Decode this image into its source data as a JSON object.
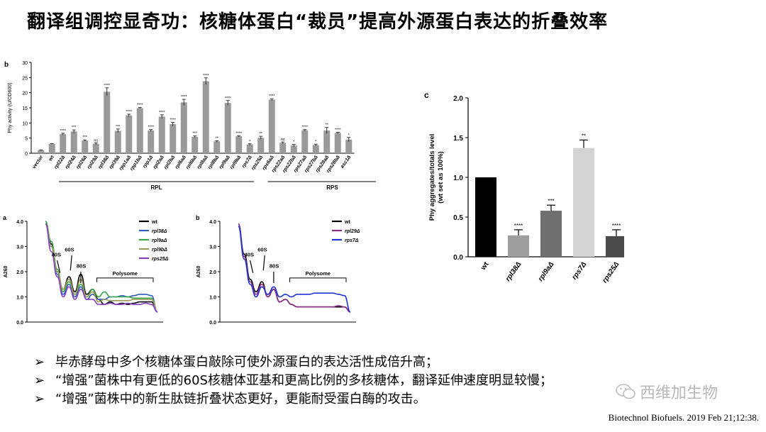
{
  "title": "翻译组调控显奇功：核糖体蛋白“裁员”提高外源蛋白表达的折叠效率",
  "panels": {
    "bar_b": {
      "label": "b",
      "ylabel": "Phy activity (U/OD600)",
      "ymax": 30,
      "yticks": [
        0,
        5,
        10,
        15,
        20,
        25,
        30
      ],
      "groups": [
        {
          "name": "RPL",
          "from": 2,
          "to": 19
        },
        {
          "name": "RPS",
          "from": 21,
          "to": 32
        }
      ],
      "bars": [
        {
          "label": "vector",
          "value": 1.0,
          "err": 0.1,
          "sig": ""
        },
        {
          "label": "wt",
          "value": 3.1,
          "err": 0.1,
          "sig": ""
        },
        {
          "label": "rpl22Δ",
          "value": 6.3,
          "err": 0.3,
          "sig": "****"
        },
        {
          "label": "rpl24Δ",
          "value": 7.2,
          "err": 0.5,
          "sig": "***"
        },
        {
          "label": "rpl26Δ",
          "value": 4.2,
          "err": 0.2,
          "sig": "***"
        },
        {
          "label": "rpl29Δ",
          "value": 3.1,
          "err": 0.3,
          "sig": "ns"
        },
        {
          "label": "rpl38Δ",
          "value": 20.3,
          "err": 1.3,
          "sig": "****"
        },
        {
          "label": "rpl39Δ",
          "value": 7.4,
          "err": 0.6,
          "sig": "***"
        },
        {
          "label": "rpp1aΔ",
          "value": 12.5,
          "err": 0.4,
          "sig": "****"
        },
        {
          "label": "rpp1bΔ",
          "value": 14.9,
          "err": 0.2,
          "sig": "****"
        },
        {
          "label": "rpp1Δ",
          "value": 7.5,
          "err": 0.3,
          "sig": "****"
        },
        {
          "label": "rpl2aΔ",
          "value": 12.1,
          "err": 0.6,
          "sig": "****"
        },
        {
          "label": "rpl2bΔ",
          "value": 9.6,
          "err": 0.6,
          "sig": "****"
        },
        {
          "label": "rpl6aΔ",
          "value": 16.8,
          "err": 1.0,
          "sig": "****"
        },
        {
          "label": "rpl6bΔ",
          "value": 5.4,
          "err": 0.3,
          "sig": "***"
        },
        {
          "label": "rpl8aΔ",
          "value": 23.8,
          "err": 1.1,
          "sig": "****"
        },
        {
          "label": "rpl8bΔ",
          "value": 3.9,
          "err": 0.2,
          "sig": "**"
        },
        {
          "label": "rpl9aΔ",
          "value": 16.6,
          "err": 0.8,
          "sig": "****"
        },
        {
          "label": "rpl9bΔ",
          "value": 5.6,
          "err": 0.2,
          "sig": "****"
        },
        {
          "label": "rps7Δ",
          "value": 2.9,
          "err": 0.2,
          "sig": "*"
        },
        {
          "label": "rps25Δ",
          "value": 5.1,
          "err": 0.5,
          "sig": "**"
        },
        {
          "label": "rps6aΔ",
          "value": 17.7,
          "err": 0.3,
          "sig": "****"
        },
        {
          "label": "rps22aΔ",
          "value": 3.4,
          "err": 0.3,
          "sig": "ns"
        },
        {
          "label": "rps22bΔ",
          "value": 2.5,
          "err": 0.4,
          "sig": "*"
        },
        {
          "label": "rps27aΔ",
          "value": 7.6,
          "err": 0.2,
          "sig": "****"
        },
        {
          "label": "rps27bΔ",
          "value": 2.7,
          "err": 0.3,
          "sig": "*"
        },
        {
          "label": "rps28aΔ",
          "value": 7.5,
          "err": 1.0,
          "sig": "**"
        },
        {
          "label": "rps28bΔ",
          "value": 6.7,
          "err": 0.2,
          "sig": "****"
        },
        {
          "label": "asc1Δ",
          "value": 4.5,
          "err": 0.7,
          "sig": "*"
        }
      ]
    },
    "bar_c": {
      "label": "c",
      "ylabel_line1": "Phy aggregates/totals level",
      "ylabel_line2": "(wt set as 100%)",
      "ymax": 2.0,
      "yticks": [
        "0.0",
        "0.5",
        "1.0",
        "1.5",
        "2.0"
      ],
      "bars": [
        {
          "label": "wt",
          "value": 1.0,
          "err": 0.0,
          "sig": "",
          "color": "#000000"
        },
        {
          "label": "rpl38Δ",
          "value": 0.27,
          "err": 0.07,
          "sig": "****",
          "color": "#9e9e9e"
        },
        {
          "label": "rpl9aΔ",
          "value": 0.58,
          "err": 0.07,
          "sig": "***",
          "color": "#6f6f6f"
        },
        {
          "label": "rps7Δ",
          "value": 1.37,
          "err": 0.1,
          "sig": "**",
          "color": "#d4d4d4"
        },
        {
          "label": "rps25Δ",
          "value": 0.26,
          "err": 0.08,
          "sig": "****",
          "color": "#4a4a4a"
        }
      ]
    },
    "poly_a": {
      "label": "a",
      "ylabel": "A260",
      "yticks": [
        "0.0",
        "1.0",
        "2.0",
        "3.0",
        "4.0"
      ],
      "annotations": {
        "s40": "40S",
        "s60": "60S",
        "s80": "80S",
        "polysome": "Polysome"
      },
      "legend": [
        {
          "name": "wt",
          "color": "#000000"
        },
        {
          "name": "rpl38Δ",
          "color": "#2f5fc4"
        },
        {
          "name": "rpl9aΔ",
          "color": "#3aa64a"
        },
        {
          "name": "rpl9bΔ",
          "color": "#9c9a58"
        },
        {
          "name": "rps25Δ",
          "color": "#8a3fc8"
        }
      ]
    },
    "poly_b": {
      "label": "b",
      "ylabel": "A260",
      "yticks": [
        "0.0",
        "1.0",
        "2.0",
        "3.0",
        "4.0"
      ],
      "annotations": {
        "s40": "40S",
        "s60": "60S",
        "s80": "80S",
        "polysome": "Polysome"
      },
      "legend": [
        {
          "name": "wt",
          "color": "#000000"
        },
        {
          "name": "rpl29Δ",
          "color": "#8a2e86"
        },
        {
          "name": "rps7Δ",
          "color": "#1f35d6"
        }
      ]
    }
  },
  "chart_data": [
    {
      "type": "bar",
      "title": "",
      "xlabel": "",
      "ylabel": "Phy activity (U/OD600)",
      "ylim": [
        0,
        30
      ],
      "categories": [
        "vector",
        "wt",
        "rpl22Δ",
        "rpl24Δ",
        "rpl26Δ",
        "rpl29Δ",
        "rpl38Δ",
        "rpl39Δ",
        "rpp1aΔ",
        "rpp1bΔ",
        "rpp1Δ",
        "rpl2aΔ",
        "rpl2bΔ",
        "rpl6aΔ",
        "rpl6bΔ",
        "rpl8aΔ",
        "rpl8bΔ",
        "rpl9aΔ",
        "rpl9bΔ",
        "rps7Δ",
        "rps25Δ",
        "rps6aΔ",
        "rps22aΔ",
        "rps22bΔ",
        "rps27aΔ",
        "rps27bΔ",
        "rps28aΔ",
        "rps28bΔ",
        "asc1Δ"
      ],
      "values": [
        1.0,
        3.1,
        6.3,
        7.2,
        4.2,
        3.1,
        20.3,
        7.4,
        12.5,
        14.9,
        7.5,
        12.1,
        9.6,
        16.8,
        5.4,
        23.8,
        3.9,
        16.6,
        5.6,
        2.9,
        5.1,
        17.7,
        3.4,
        2.5,
        7.6,
        2.7,
        7.5,
        6.7,
        4.5
      ]
    },
    {
      "type": "bar",
      "title": "",
      "xlabel": "",
      "ylabel": "Phy aggregates/totals level (wt set as 100%)",
      "ylim": [
        0,
        2.0
      ],
      "categories": [
        "wt",
        "rpl38Δ",
        "rpl9aΔ",
        "rps7Δ",
        "rps25Δ"
      ],
      "values": [
        1.0,
        0.27,
        0.58,
        1.37,
        0.26
      ]
    },
    {
      "type": "line",
      "title": "",
      "ylabel": "A260",
      "ylim": [
        0,
        4.0
      ],
      "series": [
        {
          "name": "wt",
          "values": [
            4.0,
            3.1,
            2.0,
            1.3,
            1.8,
            1.2,
            1.9,
            1.1,
            1.3,
            0.9,
            0.7,
            0.8,
            0.7,
            0.75,
            0.7,
            0.75,
            0.8,
            0.8,
            0.8,
            0.4
          ]
        },
        {
          "name": "rpl38Δ",
          "values": [
            3.9,
            3.0,
            1.9,
            1.1,
            1.5,
            1.0,
            1.4,
            0.9,
            1.1,
            0.9,
            0.9,
            1.0,
            1.0,
            1.05,
            1.0,
            1.05,
            1.1,
            1.1,
            1.05,
            0.4
          ]
        },
        {
          "name": "rpl9aΔ",
          "values": [
            4.0,
            3.2,
            2.1,
            1.2,
            1.6,
            1.1,
            1.5,
            1.0,
            1.3,
            1.0,
            1.2,
            1.0,
            1.0,
            1.0,
            1.0,
            0.95,
            0.95,
            0.95,
            0.95,
            0.4
          ]
        },
        {
          "name": "rpl9bΔ",
          "values": [
            3.9,
            3.0,
            2.0,
            1.3,
            1.7,
            1.1,
            1.7,
            1.0,
            1.2,
            0.8,
            0.9,
            0.85,
            0.85,
            0.85,
            0.85,
            0.9,
            0.9,
            0.9,
            0.9,
            0.4
          ]
        },
        {
          "name": "rps25Δ",
          "values": [
            3.9,
            2.8,
            1.8,
            1.0,
            1.4,
            0.9,
            1.3,
            0.9,
            0.9,
            0.7,
            0.7,
            0.75,
            0.7,
            0.7,
            0.75,
            0.7,
            0.7,
            0.75,
            0.7,
            0.4
          ]
        }
      ]
    },
    {
      "type": "line",
      "title": "",
      "ylabel": "A260",
      "ylim": [
        0,
        4.0
      ],
      "series": [
        {
          "name": "wt",
          "values": [
            3.9,
            2.7,
            1.7,
            1.2,
            1.6,
            1.0,
            1.3,
            0.8,
            0.9,
            0.7,
            0.6,
            0.6,
            0.6,
            0.6,
            0.6,
            0.6,
            0.6,
            0.6,
            0.6,
            0.4
          ]
        },
        {
          "name": "rpl29Δ",
          "values": [
            3.9,
            2.6,
            1.6,
            1.1,
            1.5,
            1.0,
            1.3,
            0.8,
            0.9,
            0.7,
            0.6,
            0.6,
            0.6,
            0.6,
            0.6,
            0.6,
            0.6,
            0.65,
            0.6,
            0.4
          ]
        },
        {
          "name": "rps7Δ",
          "values": [
            3.8,
            2.5,
            1.5,
            1.0,
            1.4,
            1.1,
            1.4,
            1.0,
            1.1,
            1.0,
            1.1,
            1.1,
            1.1,
            1.15,
            1.15,
            1.15,
            1.15,
            1.1,
            1.05,
            0.4
          ]
        }
      ]
    }
  ],
  "bullets": [
    {
      "arrow": "➢",
      "text": "毕赤酵母中多个核糖体蛋白敲除可使外源蛋白的表达活性成倍升高；"
    },
    {
      "arrow": "➢",
      "text": "“增强”菌株中有更低的60S核糖体亚基和更高比例的多核糖体，翻译延伸速度明显较慢；"
    },
    {
      "arrow": "➢",
      "text": "“增强”菌株中的新生肽链折叠状态更好，更能耐受蛋白酶的攻击。"
    }
  ],
  "citation": "Biotechnol Biofuels. 2019 Feb 21;12:38.",
  "watermark": "西维加生物",
  "colors": {
    "bar_gray": "#9a9a9a",
    "axis": "#000000"
  }
}
